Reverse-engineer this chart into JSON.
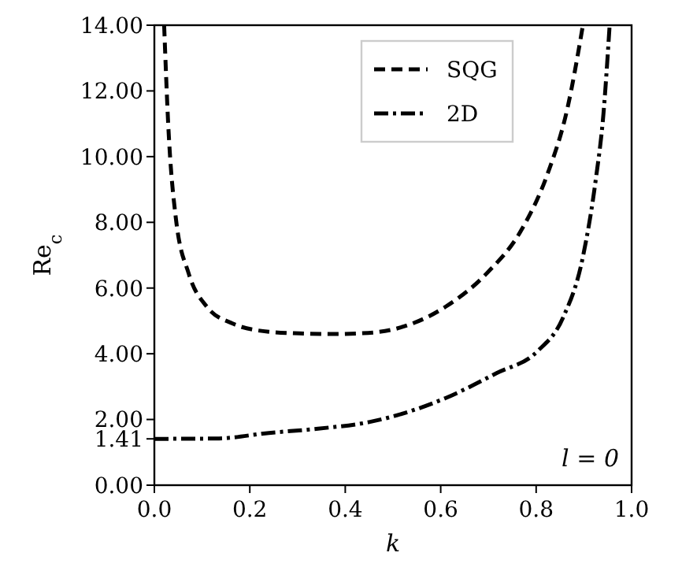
{
  "chart_data": {
    "type": "line",
    "xlabel": "k",
    "ylabel": "Re$_{c}$",
    "xlim": [
      0,
      1
    ],
    "ylim": [
      0,
      14
    ],
    "xticks": [
      {
        "value": 0,
        "label": "0.0"
      },
      {
        "value": 0.2,
        "label": "0.2"
      },
      {
        "value": 0.4,
        "label": "0.4"
      },
      {
        "value": 0.6,
        "label": "0.6"
      },
      {
        "value": 0.8,
        "label": "0.8"
      },
      {
        "value": 1,
        "label": "1.0"
      }
    ],
    "yticks": [
      {
        "value": 0,
        "label": "0.00"
      },
      {
        "value": 1.41,
        "label": "1.41"
      },
      {
        "value": 2,
        "label": "2.00"
      },
      {
        "value": 4,
        "label": "4.00"
      },
      {
        "value": 6,
        "label": "6.00"
      },
      {
        "value": 8,
        "label": "8.00"
      },
      {
        "value": 10,
        "label": "10.00"
      },
      {
        "value": 12,
        "label": "12.00"
      },
      {
        "value": 14,
        "label": "14.00"
      }
    ],
    "legend": "top",
    "grid": false,
    "annotations": [
      "l = 0"
    ],
    "series": [
      {
        "name": "SQG",
        "color": "#000000",
        "line_style": "dashed",
        "x": [
          0.0205,
          0.029,
          0.045,
          0.072,
          0.11,
          0.164,
          0.24,
          0.305,
          0.37,
          0.43,
          0.503,
          0.61,
          0.696,
          0.77,
          0.824,
          0.866,
          0.898
        ],
        "values": [
          14,
          11.0,
          8.13,
          6.44,
          5.43,
          4.92,
          4.67,
          4.62,
          4.6,
          4.62,
          4.75,
          5.43,
          6.44,
          7.79,
          9.48,
          11.5,
          14
        ]
      },
      {
        "name": "2D",
        "color": "#000000",
        "line_style": "dashdot",
        "x": [
          0.0,
          0.13,
          0.24,
          0.343,
          0.45,
          0.61,
          0.717,
          0.803,
          0.856,
          0.898,
          0.925,
          0.941,
          0.954
        ],
        "values": [
          1.41,
          1.42,
          1.59,
          1.72,
          1.92,
          2.65,
          3.41,
          4.08,
          5.09,
          6.95,
          9.31,
          11.3,
          14
        ]
      }
    ]
  }
}
